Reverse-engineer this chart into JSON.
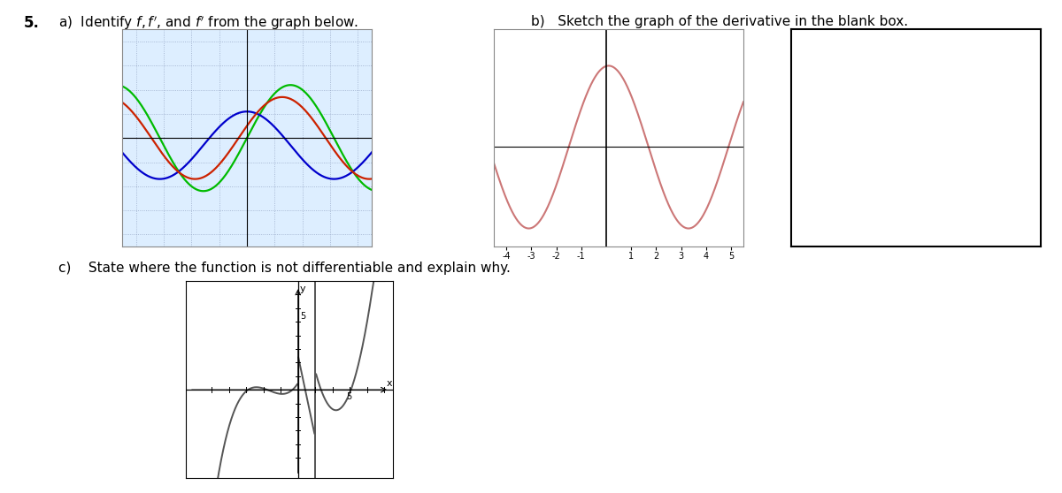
{
  "bg_color": "#ffffff",
  "green_color": "#00bb00",
  "blue_color": "#0000cc",
  "red_color": "#cc2200",
  "salmon_color": "#cc7777",
  "dark_curve_color": "#444444",
  "graph1_bg": "#ddeeff",
  "graph1_xlim": [
    -4.5,
    4.5
  ],
  "graph1_ylim": [
    -4.5,
    4.5
  ],
  "graph2_xlim": [
    -4.5,
    5.5
  ],
  "graph2_ylim": [
    -5.5,
    6.5
  ],
  "graph4_xlim": [
    -6.5,
    5.5
  ],
  "graph4_ylim": [
    -6.5,
    8.0
  ]
}
